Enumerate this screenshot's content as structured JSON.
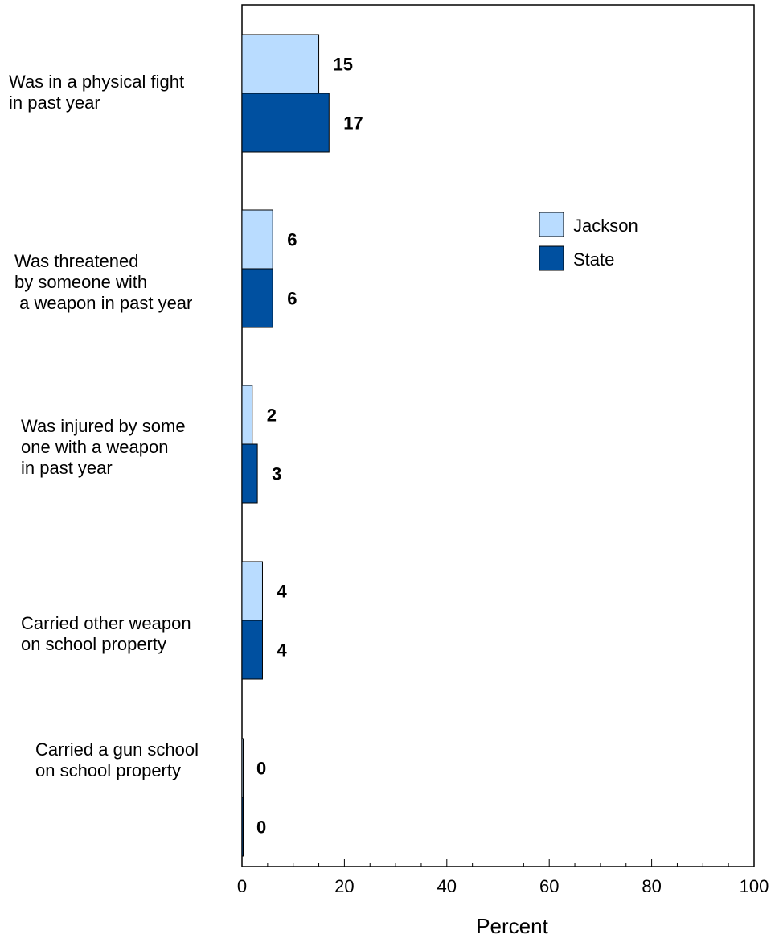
{
  "chart_data": {
    "type": "bar",
    "orientation": "horizontal",
    "categories": [
      [
        "Was in a physical fight",
        "in past year"
      ],
      [
        "Was threatened",
        "by someone with",
        " a weapon in past year"
      ],
      [
        "Was injured  by some",
        "one with a weapon",
        "in past year"
      ],
      [
        "Carried other weapon",
        "on school property"
      ],
      [
        "Carried a gun school",
        "on school property"
      ]
    ],
    "series": [
      {
        "name": "Jackson",
        "color": "#b9dcff",
        "values": [
          15,
          6,
          2,
          4,
          0
        ]
      },
      {
        "name": "State",
        "color": "#0050a0",
        "values": [
          17,
          6,
          3,
          4,
          0
        ]
      }
    ],
    "xlabel": "Percent",
    "xlim": [
      0,
      100
    ],
    "xticks": [
      0,
      20,
      40,
      60,
      80,
      100
    ],
    "legend_position": "top-right",
    "grid": false
  }
}
